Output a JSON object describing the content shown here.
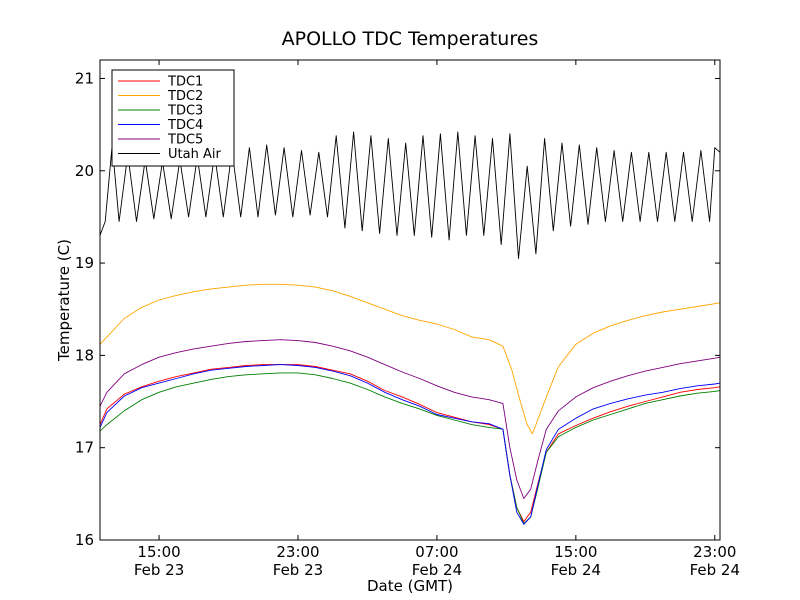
{
  "chart_data": {
    "type": "line",
    "title": "APOLLO TDC Temperatures",
    "xlabel": "Date (GMT)",
    "ylabel": "Temperature (C)",
    "x_unit": "hours since Feb 23 00:00 GMT",
    "xlim": [
      11.6,
      47.3
    ],
    "ylim": [
      16,
      21.2
    ],
    "y_ticks": [
      16,
      17,
      18,
      19,
      20,
      21
    ],
    "x_ticks": [
      {
        "t": 15,
        "time": "15:00",
        "date": "Feb 23"
      },
      {
        "t": 23,
        "time": "23:00",
        "date": "Feb 23"
      },
      {
        "t": 31,
        "time": "07:00",
        "date": "Feb 24"
      },
      {
        "t": 39,
        "time": "15:00",
        "date": "Feb 24"
      },
      {
        "t": 47,
        "time": "23:00",
        "date": "Feb 24"
      }
    ],
    "legend_position": "top-left",
    "series": [
      {
        "name": "TDC1",
        "color": "#ff0000",
        "points": [
          [
            11.6,
            17.25
          ],
          [
            12.0,
            17.42
          ],
          [
            13,
            17.58
          ],
          [
            14,
            17.66
          ],
          [
            15,
            17.72
          ],
          [
            16,
            17.77
          ],
          [
            17,
            17.81
          ],
          [
            18,
            17.85
          ],
          [
            19,
            17.87
          ],
          [
            20,
            17.89
          ],
          [
            21,
            17.9
          ],
          [
            22,
            17.9
          ],
          [
            23,
            17.9
          ],
          [
            24,
            17.88
          ],
          [
            25,
            17.84
          ],
          [
            26,
            17.8
          ],
          [
            27,
            17.72
          ],
          [
            28,
            17.62
          ],
          [
            29,
            17.55
          ],
          [
            30,
            17.47
          ],
          [
            31,
            17.38
          ],
          [
            32,
            17.33
          ],
          [
            33,
            17.28
          ],
          [
            34,
            17.25
          ],
          [
            34.8,
            17.2
          ],
          [
            35.2,
            16.7
          ],
          [
            35.6,
            16.35
          ],
          [
            36.0,
            16.2
          ],
          [
            36.4,
            16.3
          ],
          [
            36.8,
            16.6
          ],
          [
            37.3,
            16.95
          ],
          [
            38,
            17.15
          ],
          [
            39,
            17.24
          ],
          [
            40,
            17.32
          ],
          [
            41,
            17.39
          ],
          [
            42,
            17.45
          ],
          [
            43,
            17.5
          ],
          [
            44,
            17.55
          ],
          [
            45,
            17.6
          ],
          [
            46,
            17.63
          ],
          [
            47,
            17.65
          ],
          [
            47.3,
            17.66
          ]
        ]
      },
      {
        "name": "TDC2",
        "color": "#ffa500",
        "points": [
          [
            11.6,
            18.12
          ],
          [
            12,
            18.2
          ],
          [
            13,
            18.4
          ],
          [
            14,
            18.52
          ],
          [
            15,
            18.6
          ],
          [
            16,
            18.65
          ],
          [
            17,
            18.69
          ],
          [
            18,
            18.72
          ],
          [
            19,
            18.74
          ],
          [
            20,
            18.76
          ],
          [
            21,
            18.77
          ],
          [
            22,
            18.77
          ],
          [
            23,
            18.76
          ],
          [
            24,
            18.74
          ],
          [
            25,
            18.7
          ],
          [
            26,
            18.64
          ],
          [
            27,
            18.57
          ],
          [
            28,
            18.5
          ],
          [
            29,
            18.43
          ],
          [
            30,
            18.38
          ],
          [
            31,
            18.34
          ],
          [
            32,
            18.28
          ],
          [
            33,
            18.2
          ],
          [
            34,
            18.17
          ],
          [
            34.8,
            18.1
          ],
          [
            35.3,
            17.85
          ],
          [
            35.8,
            17.5
          ],
          [
            36.2,
            17.25
          ],
          [
            36.5,
            17.15
          ],
          [
            36.9,
            17.35
          ],
          [
            37.4,
            17.6
          ],
          [
            38,
            17.88
          ],
          [
            39,
            18.12
          ],
          [
            40,
            18.24
          ],
          [
            41,
            18.32
          ],
          [
            42,
            18.38
          ],
          [
            43,
            18.43
          ],
          [
            44,
            18.47
          ],
          [
            45,
            18.5
          ],
          [
            46,
            18.53
          ],
          [
            47,
            18.56
          ],
          [
            47.3,
            18.57
          ]
        ]
      },
      {
        "name": "TDC3",
        "color": "#008000",
        "points": [
          [
            11.6,
            17.18
          ],
          [
            12,
            17.25
          ],
          [
            13,
            17.4
          ],
          [
            14,
            17.52
          ],
          [
            15,
            17.6
          ],
          [
            16,
            17.66
          ],
          [
            17,
            17.7
          ],
          [
            18,
            17.74
          ],
          [
            19,
            17.77
          ],
          [
            20,
            17.79
          ],
          [
            21,
            17.8
          ],
          [
            22,
            17.81
          ],
          [
            23,
            17.81
          ],
          [
            24,
            17.79
          ],
          [
            25,
            17.75
          ],
          [
            26,
            17.7
          ],
          [
            27,
            17.63
          ],
          [
            28,
            17.55
          ],
          [
            29,
            17.48
          ],
          [
            30,
            17.42
          ],
          [
            31,
            17.35
          ],
          [
            32,
            17.3
          ],
          [
            33,
            17.25
          ],
          [
            34,
            17.22
          ],
          [
            34.8,
            17.2
          ],
          [
            35.2,
            16.7
          ],
          [
            35.6,
            16.35
          ],
          [
            36.0,
            16.18
          ],
          [
            36.4,
            16.25
          ],
          [
            36.8,
            16.55
          ],
          [
            37.3,
            16.95
          ],
          [
            38,
            17.12
          ],
          [
            39,
            17.22
          ],
          [
            40,
            17.3
          ],
          [
            41,
            17.36
          ],
          [
            42,
            17.42
          ],
          [
            43,
            17.48
          ],
          [
            44,
            17.52
          ],
          [
            45,
            17.56
          ],
          [
            46,
            17.59
          ],
          [
            47,
            17.61
          ],
          [
            47.3,
            17.62
          ]
        ]
      },
      {
        "name": "TDC4",
        "color": "#0000ff",
        "points": [
          [
            11.6,
            17.22
          ],
          [
            12,
            17.38
          ],
          [
            13,
            17.56
          ],
          [
            14,
            17.65
          ],
          [
            15,
            17.7
          ],
          [
            16,
            17.75
          ],
          [
            17,
            17.8
          ],
          [
            18,
            17.84
          ],
          [
            19,
            17.86
          ],
          [
            20,
            17.88
          ],
          [
            21,
            17.89
          ],
          [
            22,
            17.9
          ],
          [
            23,
            17.89
          ],
          [
            24,
            17.87
          ],
          [
            25,
            17.83
          ],
          [
            26,
            17.78
          ],
          [
            27,
            17.7
          ],
          [
            28,
            17.6
          ],
          [
            29,
            17.52
          ],
          [
            30,
            17.45
          ],
          [
            31,
            17.36
          ],
          [
            32,
            17.32
          ],
          [
            33,
            17.28
          ],
          [
            34,
            17.26
          ],
          [
            34.8,
            17.2
          ],
          [
            35.2,
            16.7
          ],
          [
            35.6,
            16.3
          ],
          [
            36.0,
            16.17
          ],
          [
            36.4,
            16.25
          ],
          [
            36.8,
            16.58
          ],
          [
            37.3,
            16.98
          ],
          [
            38,
            17.2
          ],
          [
            39,
            17.32
          ],
          [
            40,
            17.42
          ],
          [
            41,
            17.48
          ],
          [
            42,
            17.53
          ],
          [
            43,
            17.57
          ],
          [
            44,
            17.6
          ],
          [
            45,
            17.64
          ],
          [
            46,
            17.67
          ],
          [
            47,
            17.69
          ],
          [
            47.3,
            17.7
          ]
        ]
      },
      {
        "name": "TDC5",
        "color": "#800080",
        "points": [
          [
            11.6,
            17.45
          ],
          [
            12,
            17.6
          ],
          [
            13,
            17.8
          ],
          [
            14,
            17.9
          ],
          [
            15,
            17.98
          ],
          [
            16,
            18.03
          ],
          [
            17,
            18.07
          ],
          [
            18,
            18.1
          ],
          [
            19,
            18.13
          ],
          [
            20,
            18.15
          ],
          [
            21,
            18.16
          ],
          [
            22,
            18.17
          ],
          [
            23,
            18.16
          ],
          [
            24,
            18.14
          ],
          [
            25,
            18.1
          ],
          [
            26,
            18.05
          ],
          [
            27,
            17.98
          ],
          [
            28,
            17.9
          ],
          [
            29,
            17.82
          ],
          [
            30,
            17.75
          ],
          [
            31,
            17.67
          ],
          [
            32,
            17.6
          ],
          [
            33,
            17.55
          ],
          [
            34,
            17.52
          ],
          [
            34.8,
            17.48
          ],
          [
            35.2,
            17.0
          ],
          [
            35.6,
            16.65
          ],
          [
            36.0,
            16.45
          ],
          [
            36.4,
            16.55
          ],
          [
            36.8,
            16.85
          ],
          [
            37.3,
            17.2
          ],
          [
            38,
            17.4
          ],
          [
            39,
            17.55
          ],
          [
            40,
            17.65
          ],
          [
            41,
            17.72
          ],
          [
            42,
            17.78
          ],
          [
            43,
            17.83
          ],
          [
            44,
            17.87
          ],
          [
            45,
            17.91
          ],
          [
            46,
            17.94
          ],
          [
            47,
            17.97
          ],
          [
            47.3,
            17.98
          ]
        ]
      },
      {
        "name": "Utah Air",
        "color": "#000000",
        "points": [
          [
            11.6,
            19.3
          ],
          [
            11.9,
            19.45
          ],
          [
            12.3,
            20.28
          ],
          [
            12.7,
            19.45
          ],
          [
            13.2,
            20.18
          ],
          [
            13.7,
            19.45
          ],
          [
            14.2,
            20.12
          ],
          [
            14.7,
            19.48
          ],
          [
            15.2,
            20.1
          ],
          [
            15.7,
            19.48
          ],
          [
            16.2,
            20.12
          ],
          [
            16.7,
            19.5
          ],
          [
            17.2,
            20.15
          ],
          [
            17.7,
            19.5
          ],
          [
            18.2,
            20.18
          ],
          [
            18.7,
            19.5
          ],
          [
            19.2,
            20.22
          ],
          [
            19.7,
            19.5
          ],
          [
            20.2,
            20.25
          ],
          [
            20.7,
            19.5
          ],
          [
            21.2,
            20.28
          ],
          [
            21.7,
            19.52
          ],
          [
            22.2,
            20.25
          ],
          [
            22.7,
            19.5
          ],
          [
            23.2,
            20.22
          ],
          [
            23.7,
            19.52
          ],
          [
            24.2,
            20.2
          ],
          [
            24.7,
            19.5
          ],
          [
            25.2,
            20.38
          ],
          [
            25.7,
            19.38
          ],
          [
            26.2,
            20.42
          ],
          [
            26.7,
            19.35
          ],
          [
            27.2,
            20.38
          ],
          [
            27.7,
            19.32
          ],
          [
            28.2,
            20.35
          ],
          [
            28.7,
            19.3
          ],
          [
            29.2,
            20.3
          ],
          [
            29.7,
            19.3
          ],
          [
            30.2,
            20.38
          ],
          [
            30.7,
            19.28
          ],
          [
            31.2,
            20.4
          ],
          [
            31.7,
            19.25
          ],
          [
            32.2,
            20.42
          ],
          [
            32.7,
            19.3
          ],
          [
            33.2,
            20.38
          ],
          [
            33.7,
            19.3
          ],
          [
            34.2,
            20.35
          ],
          [
            34.7,
            19.2
          ],
          [
            35.2,
            20.4
          ],
          [
            35.7,
            19.05
          ],
          [
            36.2,
            20.05
          ],
          [
            36.7,
            19.1
          ],
          [
            37.2,
            20.35
          ],
          [
            37.7,
            19.35
          ],
          [
            38.2,
            20.3
          ],
          [
            38.7,
            19.4
          ],
          [
            39.2,
            20.28
          ],
          [
            39.7,
            19.42
          ],
          [
            40.2,
            20.25
          ],
          [
            40.7,
            19.45
          ],
          [
            41.2,
            20.22
          ],
          [
            41.7,
            19.45
          ],
          [
            42.2,
            20.2
          ],
          [
            42.7,
            19.45
          ],
          [
            43.2,
            20.2
          ],
          [
            43.7,
            19.45
          ],
          [
            44.2,
            20.2
          ],
          [
            44.7,
            19.45
          ],
          [
            45.2,
            20.2
          ],
          [
            45.7,
            19.45
          ],
          [
            46.2,
            20.22
          ],
          [
            46.7,
            19.45
          ],
          [
            47.0,
            20.25
          ],
          [
            47.3,
            20.2
          ]
        ]
      }
    ]
  }
}
